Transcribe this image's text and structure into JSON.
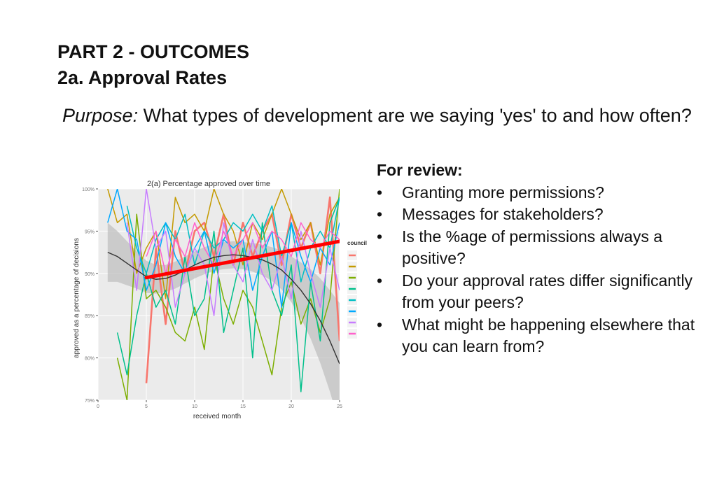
{
  "heading": {
    "line1": "PART 2 - OUTCOMES",
    "line2": "2a. Approval Rates"
  },
  "purpose": {
    "label": "Purpose:",
    "text": " What types of development are we saying 'yes' to and how often?"
  },
  "review": {
    "title": "For review:",
    "bullet": "•",
    "items": [
      "Granting more permissions?",
      "Messages for stakeholders?",
      "Is the %age of permissions always a positive?",
      "Do your approval rates differ significantly from your peers?",
      "What might be happening elsewhere that you can learn from?"
    ]
  },
  "chart_data": {
    "type": "line",
    "title": "2(a) Percentage approved over time",
    "xlabel": "received month",
    "ylabel": "approved as a percentage of decisions",
    "legend_title": "council",
    "legend_position": "right",
    "xlim": [
      0,
      25
    ],
    "ylim": [
      75,
      100
    ],
    "xticks": [
      0,
      5,
      10,
      15,
      20,
      25
    ],
    "yticks": [
      75,
      80,
      85,
      90,
      95,
      100
    ],
    "ytick_labels": [
      "75%",
      "80%",
      "85%",
      "90%",
      "95%",
      "100%"
    ],
    "grid": true,
    "background": "#ebebeb",
    "series": [
      {
        "color": "#f8766d",
        "x": [
          5,
          6,
          7,
          8,
          9,
          10,
          11,
          12,
          13,
          14,
          15,
          16,
          17,
          18,
          19,
          20,
          21,
          22,
          23,
          24,
          25
        ],
        "values": [
          77,
          93,
          84,
          95,
          90,
          95,
          96,
          92,
          97,
          91,
          96,
          92,
          95,
          97,
          91,
          97,
          93,
          96,
          90,
          99,
          82
        ]
      },
      {
        "color": "#c49a00",
        "x": [
          1,
          2,
          3,
          4,
          5,
          6,
          7,
          8,
          9,
          10,
          11,
          12,
          13,
          14,
          15,
          16,
          17,
          18,
          19,
          20,
          21,
          22,
          23,
          24,
          25
        ],
        "values": [
          100,
          96,
          97,
          90,
          93,
          95,
          87,
          99,
          96,
          97,
          95,
          100,
          97,
          95,
          91,
          96,
          94,
          97,
          100,
          97,
          94,
          96,
          91,
          97,
          99
        ]
      },
      {
        "color": "#7cae00",
        "x": [
          2,
          3,
          4,
          5,
          6,
          7,
          8,
          9,
          10,
          11,
          12,
          13,
          14,
          15,
          16,
          17,
          18,
          19,
          20,
          21,
          22,
          23,
          24,
          25
        ],
        "values": [
          80,
          75,
          97,
          87,
          88,
          86,
          83,
          82,
          86,
          81,
          92,
          87,
          84,
          88,
          86,
          82,
          78,
          86,
          89,
          84,
          87,
          83,
          87,
          100
        ]
      },
      {
        "color": "#00c08b",
        "x": [
          2,
          3,
          4,
          5,
          6,
          7,
          8,
          9,
          10,
          11,
          12,
          13,
          14,
          15,
          16,
          17,
          18,
          19,
          20,
          21,
          22,
          23,
          24,
          25
        ],
        "values": [
          83,
          78,
          85,
          90,
          86,
          88,
          84,
          92,
          85,
          87,
          95,
          83,
          88,
          93,
          80,
          96,
          88,
          85,
          91,
          76,
          89,
          82,
          96,
          99
        ]
      },
      {
        "color": "#00bfc4",
        "x": [
          3,
          4,
          5,
          6,
          7,
          8,
          9,
          10,
          11,
          12,
          13,
          14,
          15,
          16,
          17,
          18,
          19,
          20,
          21,
          22,
          23,
          24,
          25
        ],
        "values": [
          98,
          93,
          90,
          94,
          96,
          94,
          97,
          91,
          95,
          93,
          94,
          96,
          95,
          97,
          95,
          98,
          92,
          96,
          89,
          93,
          95,
          93,
          99
        ]
      },
      {
        "color": "#00a9ff",
        "x": [
          1,
          2,
          3,
          4,
          5,
          6,
          7,
          8,
          9,
          10,
          11,
          12,
          13,
          14,
          15,
          16,
          17,
          18,
          19,
          20,
          21,
          22,
          23,
          24,
          25
        ],
        "values": [
          96,
          100,
          95,
          94,
          88,
          91,
          96,
          92,
          90,
          93,
          95,
          90,
          94,
          93,
          94,
          88,
          92,
          95,
          86,
          96,
          92,
          89,
          93,
          91,
          96
        ]
      },
      {
        "color": "#c77cff",
        "x": [
          3,
          4,
          5,
          6,
          7,
          8,
          9,
          10,
          11,
          12,
          13,
          14,
          15,
          16,
          17,
          18,
          19,
          20,
          21,
          22,
          23,
          24,
          25
        ],
        "values": [
          96,
          88,
          100,
          93,
          95,
          86,
          90,
          93,
          91,
          85,
          96,
          91,
          89,
          94,
          90,
          88,
          92,
          87,
          95,
          90,
          86,
          93,
          88
        ]
      },
      {
        "color": "#ff61cc",
        "x": [
          5,
          6,
          7,
          8,
          9,
          10,
          11,
          12,
          13,
          14,
          15,
          16,
          17,
          18,
          19,
          20,
          21,
          22,
          23,
          24,
          25
        ],
        "values": [
          92,
          95,
          90,
          94,
          92,
          96,
          93,
          91,
          95,
          92,
          94,
          96,
          93,
          95,
          94,
          92,
          96,
          94,
          93,
          95,
          94
        ]
      }
    ],
    "linear_fit": {
      "color": "#ff0000",
      "x": [
        5,
        25
      ],
      "values": [
        89.5,
        93.8
      ]
    },
    "smooth_fit": {
      "color": "#333333",
      "band_color": "#c0c0c0",
      "x": [
        1,
        2,
        3,
        4,
        5,
        6,
        7,
        8,
        9,
        10,
        11,
        12,
        13,
        14,
        15,
        16,
        17,
        18,
        19,
        20,
        21,
        22,
        23,
        24,
        25
      ],
      "values": [
        92.5,
        92.0,
        91.2,
        90.4,
        89.6,
        89.3,
        89.4,
        89.8,
        90.4,
        91.0,
        91.5,
        91.9,
        92.1,
        92.2,
        92.1,
        91.9,
        91.6,
        91.1,
        90.4,
        89.3,
        88.0,
        86.4,
        84.4,
        82.0,
        79.3
      ],
      "band": [
        3.5,
        3.0,
        2.6,
        2.2,
        1.9,
        1.7,
        1.6,
        1.6,
        1.6,
        1.6,
        1.6,
        1.6,
        1.6,
        1.6,
        1.6,
        1.7,
        1.8,
        2.0,
        2.3,
        2.7,
        3.3,
        4.1,
        5.0,
        6.0,
        7.2
      ]
    }
  }
}
